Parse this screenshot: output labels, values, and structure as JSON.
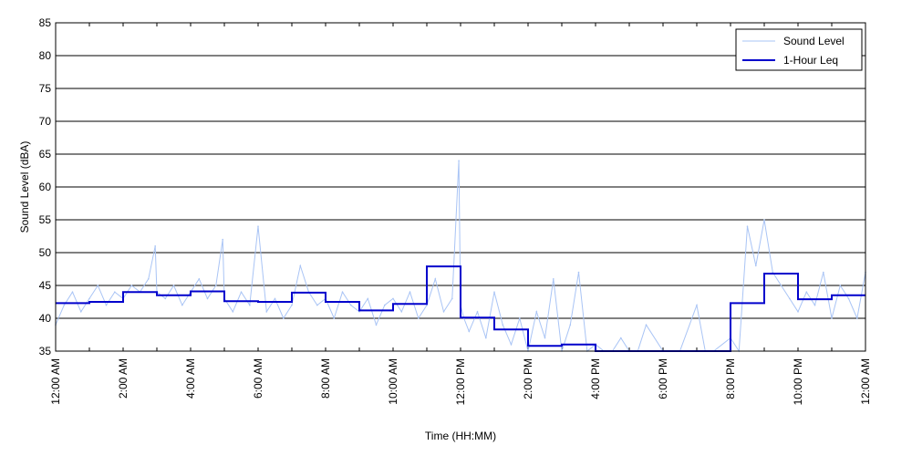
{
  "chart_data": {
    "type": "line",
    "title": "",
    "xlabel": "Time (HH:MM)",
    "ylabel": "Sound Level (dBA)",
    "ylim": [
      35,
      85
    ],
    "yticks": [
      35,
      40,
      45,
      50,
      55,
      60,
      65,
      70,
      75,
      80,
      85
    ],
    "xlim": [
      0,
      24
    ],
    "xticks": [
      {
        "hour": 0,
        "label": "12:00 AM"
      },
      {
        "hour": 2,
        "label": "2:00 AM"
      },
      {
        "hour": 4,
        "label": "4:00 AM"
      },
      {
        "hour": 6,
        "label": "6:00 AM"
      },
      {
        "hour": 8,
        "label": "8:00 AM"
      },
      {
        "hour": 10,
        "label": "10:00 AM"
      },
      {
        "hour": 12,
        "label": "12:00 PM"
      },
      {
        "hour": 14,
        "label": "2:00 PM"
      },
      {
        "hour": 16,
        "label": "4:00 PM"
      },
      {
        "hour": 18,
        "label": "6:00 PM"
      },
      {
        "hour": 20,
        "label": "8:00 PM"
      },
      {
        "hour": 22,
        "label": "10:00 PM"
      },
      {
        "hour": 24,
        "label": "12:00 AM"
      }
    ],
    "grid": "horizontal",
    "legend": "top-right",
    "series": [
      {
        "name": "Sound Level",
        "color": "#a9c4f5",
        "x": [
          0.0,
          0.25,
          0.5,
          0.75,
          1.0,
          1.25,
          1.5,
          1.75,
          2.0,
          2.25,
          2.5,
          2.75,
          2.95,
          3.0,
          3.25,
          3.5,
          3.75,
          4.0,
          4.25,
          4.5,
          4.75,
          4.95,
          5.0,
          5.25,
          5.5,
          5.75,
          6.0,
          6.25,
          6.5,
          6.75,
          7.0,
          7.25,
          7.5,
          7.75,
          8.0,
          8.25,
          8.5,
          8.75,
          9.0,
          9.25,
          9.5,
          9.75,
          10.0,
          10.25,
          10.5,
          10.75,
          11.0,
          11.25,
          11.5,
          11.75,
          11.95,
          12.0,
          12.1,
          12.25,
          12.5,
          12.75,
          13.0,
          13.25,
          13.5,
          13.75,
          14.0,
          14.25,
          14.5,
          14.75,
          15.0,
          15.25,
          15.5,
          15.75,
          16.0,
          16.25,
          16.5,
          16.75,
          17.0,
          17.25,
          17.5,
          18.0,
          18.5,
          19.0,
          19.25,
          19.5,
          20.0,
          20.25,
          20.5,
          20.75,
          21.0,
          21.25,
          21.5,
          21.75,
          22.0,
          22.25,
          22.5,
          22.75,
          23.0,
          23.25,
          23.5,
          23.75,
          24.0
        ],
        "values": [
          39,
          42,
          44,
          41,
          43,
          45,
          42,
          44,
          43,
          45,
          44,
          46,
          51,
          44,
          43,
          45,
          42,
          44,
          46,
          43,
          45,
          52,
          43,
          41,
          44,
          42,
          54,
          41,
          43,
          40,
          42,
          48,
          44,
          42,
          43,
          40,
          44,
          42,
          41,
          43,
          39,
          42,
          43,
          41,
          44,
          40,
          42,
          46,
          41,
          43,
          64,
          42,
          40,
          38,
          41,
          37,
          44,
          39,
          36,
          40,
          35,
          41,
          37,
          46,
          35,
          39,
          47,
          35,
          36,
          35,
          35,
          37,
          35,
          35,
          39,
          35,
          35,
          42,
          35,
          35,
          37,
          35,
          54,
          48,
          55,
          47,
          45,
          43,
          41,
          44,
          42,
          47,
          40,
          45,
          43,
          40,
          47
        ]
      },
      {
        "name": "1-Hour Leq",
        "color": "#0000cc",
        "step": "post",
        "x": [
          0,
          1,
          2,
          3,
          4,
          5,
          6,
          7,
          8,
          9,
          10,
          11,
          12,
          13,
          14,
          15,
          16,
          20,
          21,
          22,
          23,
          24
        ],
        "values": [
          42.3,
          42.5,
          44.0,
          43.5,
          44.1,
          42.6,
          42.5,
          43.9,
          42.5,
          41.2,
          42.2,
          47.9,
          40.1,
          38.3,
          35.8,
          36.0,
          35,
          42.3,
          46.8,
          42.9,
          43.5,
          43.5
        ]
      }
    ]
  }
}
